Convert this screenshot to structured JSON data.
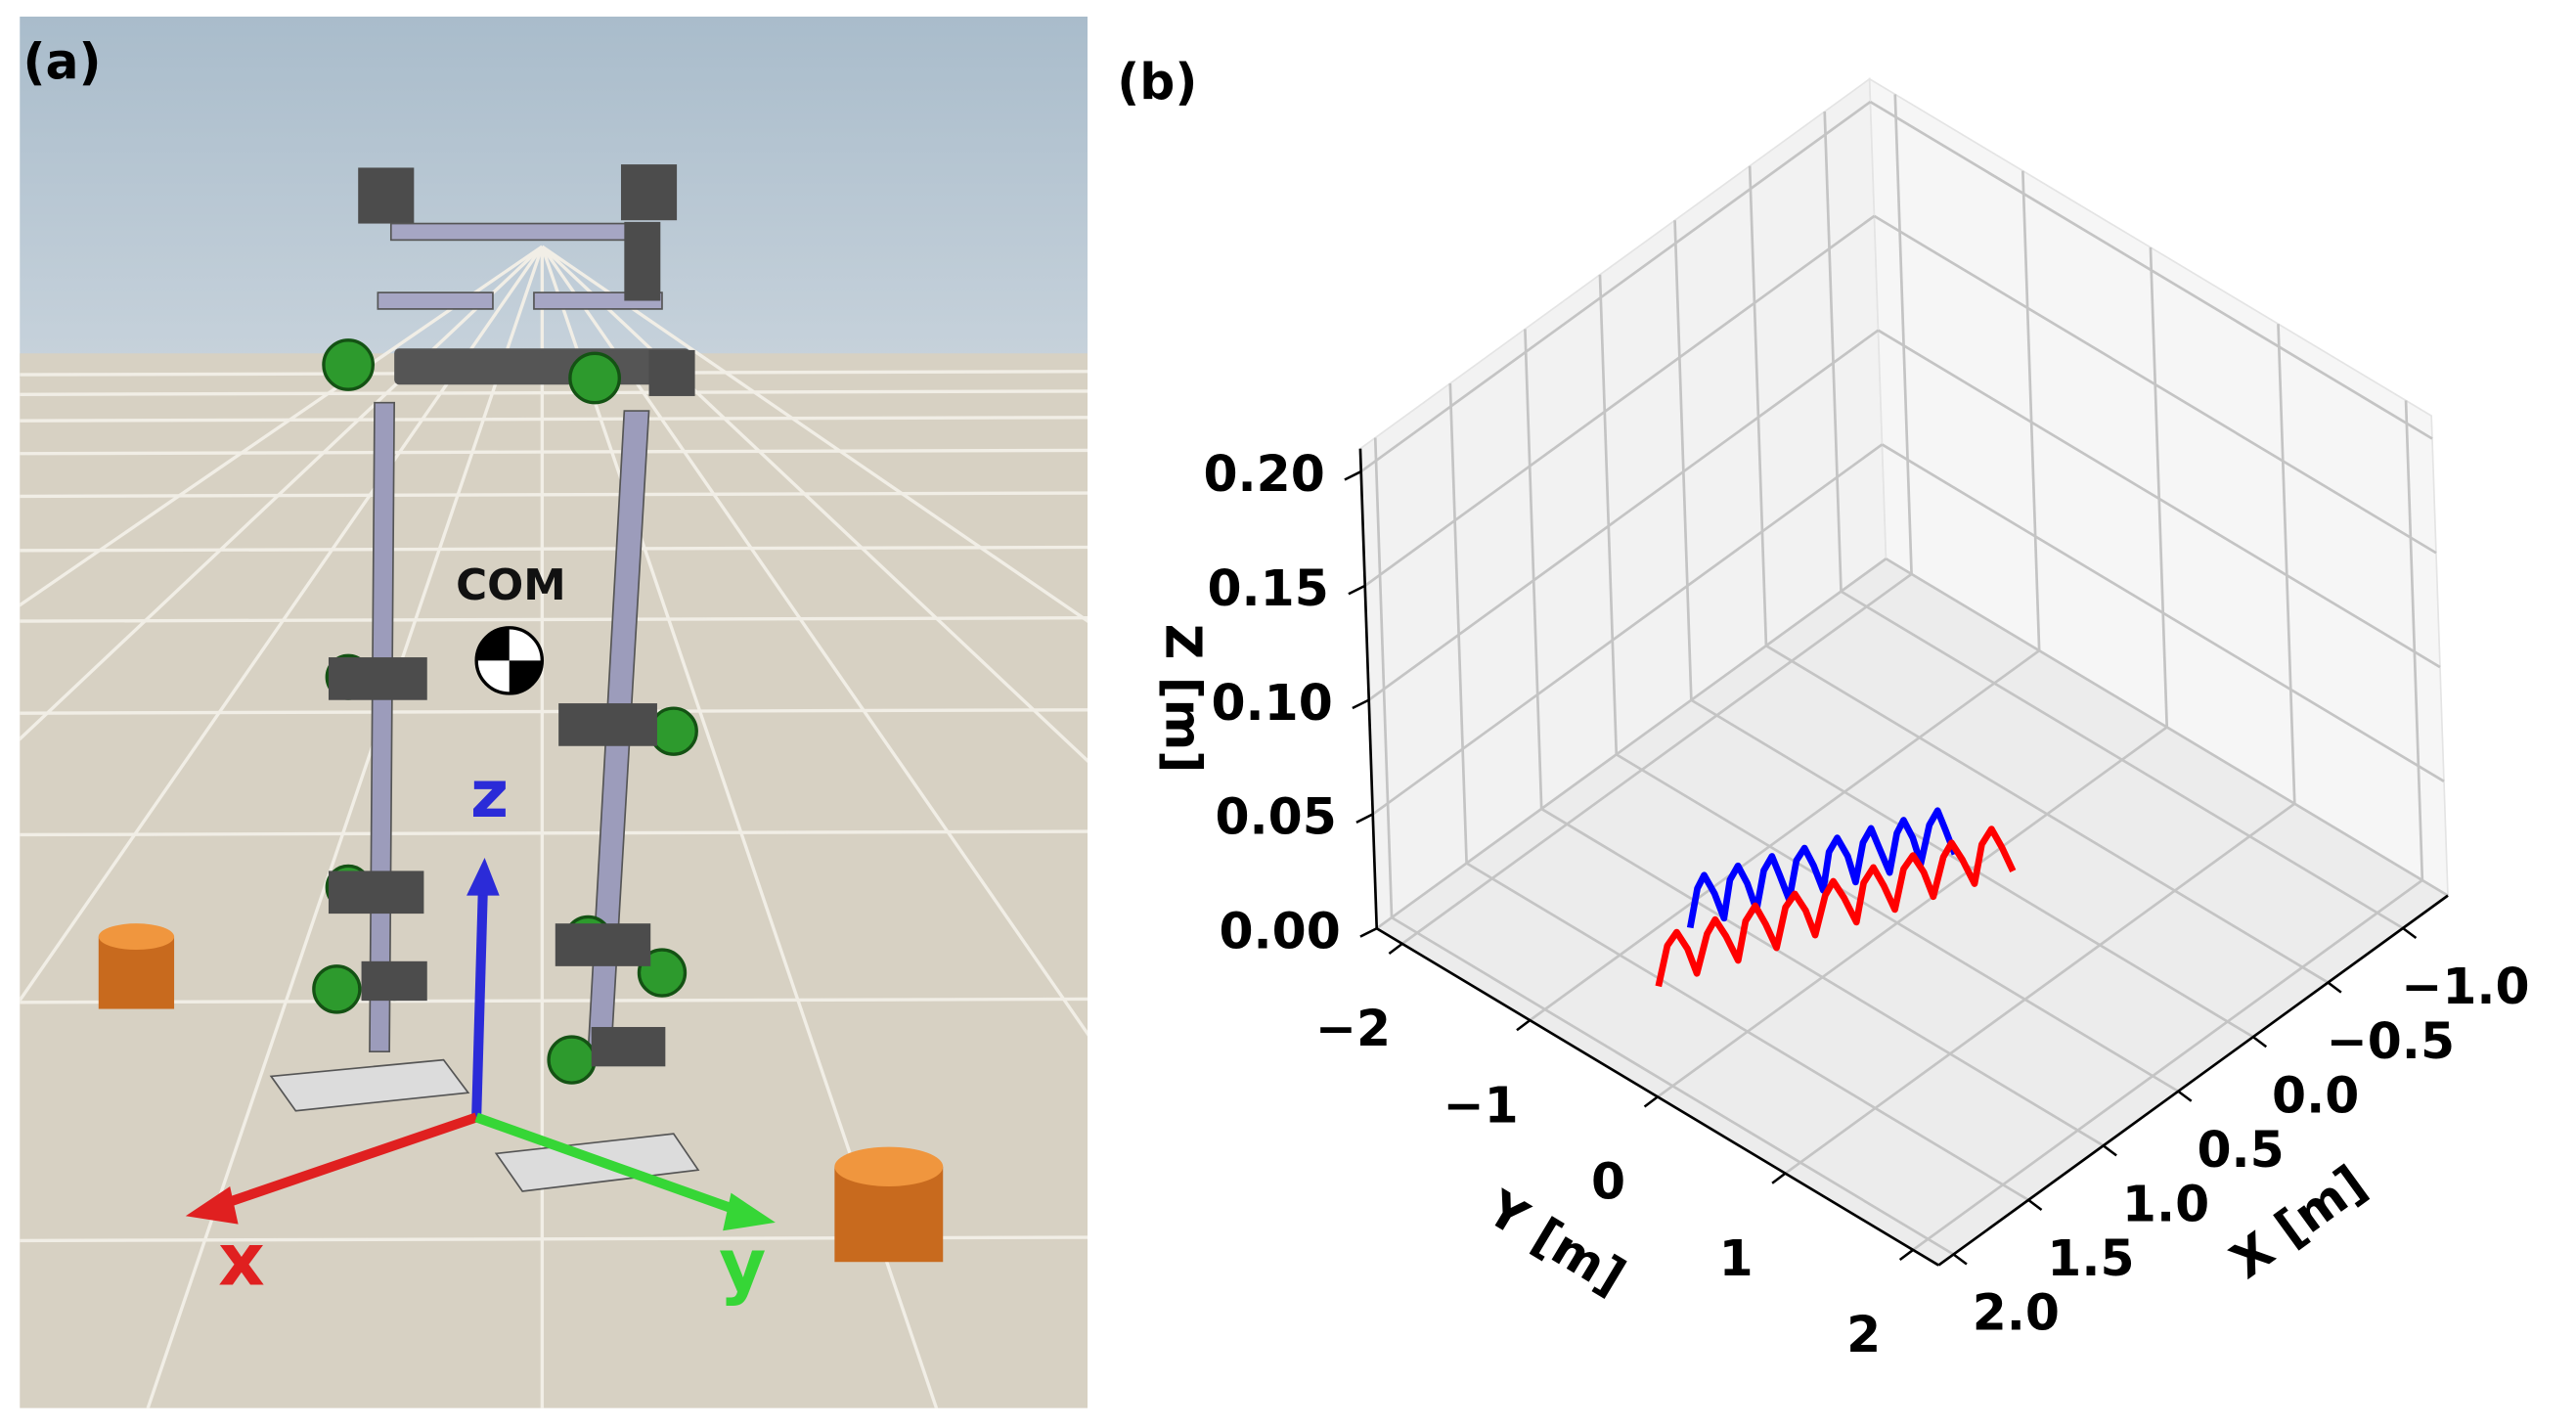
{
  "panel_a": {
    "label": "(a)",
    "com": "COM",
    "axes": {
      "x": "x",
      "y": "y",
      "z": "z"
    }
  },
  "chart_data": {
    "type": "line3d",
    "label": "(b)",
    "xlabel": "X [m]",
    "ylabel": "Y [m]",
    "zlabel": "Z [m]",
    "xlim": [
      -1.3,
      2.1
    ],
    "ylim": [
      -2.2,
      2.2
    ],
    "zlim": [
      0,
      0.21
    ],
    "xticks": [
      {
        "value": -1,
        "label": "−1.0"
      },
      {
        "value": -0.5,
        "label": "−0.5"
      },
      {
        "value": 0,
        "label": "0.0"
      },
      0.5,
      {
        "value": 1,
        "label": "1.0"
      },
      1.5,
      {
        "value": 2,
        "label": "2.0"
      }
    ],
    "yticks": [
      {
        "value": -2,
        "label": "−2"
      },
      {
        "value": -1,
        "label": "−1"
      },
      0,
      1,
      2
    ],
    "zticks": [
      {
        "value": 0,
        "label": "0.00"
      },
      0.05,
      {
        "value": 0.1,
        "label": "0.10"
      },
      0.15,
      {
        "value": 0.2,
        "label": "0.20"
      }
    ],
    "grid": true,
    "series": [
      {
        "color": "#0000ff",
        "x": [
          1.15,
          1.11,
          1.08,
          1.04,
          1.0,
          0.97,
          0.93,
          0.89,
          0.86,
          0.82,
          0.78,
          0.75,
          0.71,
          0.67,
          0.64,
          0.6,
          0.56,
          0.53,
          0.49,
          0.45,
          0.42,
          0.38,
          0.34,
          0.31,
          0.27,
          0.23,
          0.2,
          0.16,
          0.13,
          0.09,
          0.05,
          0.02,
          -0.02
        ],
        "y": [
          -0.86,
          -0.84,
          -0.82,
          -0.79,
          -0.77,
          -0.75,
          -0.73,
          -0.71,
          -0.68,
          -0.66,
          -0.64,
          -0.62,
          -0.6,
          -0.58,
          -0.55,
          -0.53,
          -0.51,
          -0.49,
          -0.47,
          -0.44,
          -0.42,
          -0.4,
          -0.38,
          -0.36,
          -0.33,
          -0.31,
          -0.29,
          -0.27,
          -0.25,
          -0.22,
          -0.2,
          -0.18,
          -0.16
        ],
        "z": [
          0,
          0.016,
          0.021,
          0.012,
          0,
          0.016,
          0.021,
          0.012,
          0,
          0.016,
          0.021,
          0.012,
          0,
          0.016,
          0.021,
          0.012,
          0,
          0.016,
          0.021,
          0.012,
          0,
          0.016,
          0.021,
          0.012,
          0,
          0.016,
          0.021,
          0.012,
          0,
          0.016,
          0.021,
          0.012,
          0
        ]
      },
      {
        "color": "#ff0000",
        "x": [
          1.54,
          1.49,
          1.45,
          1.4,
          1.36,
          1.31,
          1.27,
          1.22,
          1.17,
          1.13,
          1.08,
          1.04,
          0.99,
          0.94,
          0.9,
          0.85,
          0.81,
          0.76,
          0.72,
          0.67,
          0.62,
          0.58,
          0.53,
          0.49,
          0.44,
          0.39,
          0.35,
          0.3,
          0.26,
          0.21,
          0.17,
          0.12,
          0.07,
          0.03,
          -0.02,
          -0.06,
          -0.11
        ],
        "y": [
          -0.65,
          -0.63,
          -0.6,
          -0.58,
          -0.56,
          -0.53,
          -0.51,
          -0.49,
          -0.46,
          -0.44,
          -0.42,
          -0.39,
          -0.37,
          -0.35,
          -0.32,
          -0.3,
          -0.28,
          -0.25,
          -0.23,
          -0.21,
          -0.18,
          -0.16,
          -0.14,
          -0.11,
          -0.09,
          -0.07,
          -0.04,
          -0.02,
          0.0,
          0.03,
          0.05,
          0.07,
          0.1,
          0.12,
          0.14,
          0.17,
          0.19
        ],
        "z": [
          0,
          0.016,
          0.021,
          0.012,
          0,
          0.016,
          0.021,
          0.012,
          0,
          0.016,
          0.021,
          0.012,
          0,
          0.016,
          0.021,
          0.012,
          0,
          0.016,
          0.021,
          0.012,
          0,
          0.016,
          0.021,
          0.012,
          0,
          0.016,
          0.021,
          0.012,
          0,
          0.016,
          0.021,
          0.012,
          0,
          0.016,
          0.021,
          0.012,
          0
        ]
      }
    ]
  }
}
